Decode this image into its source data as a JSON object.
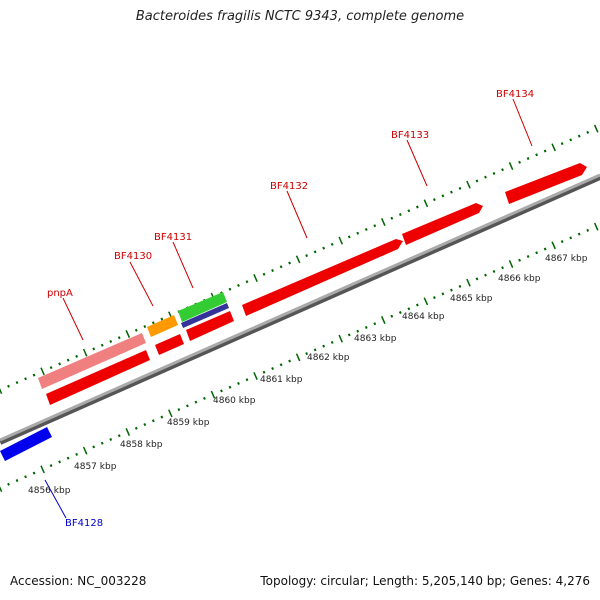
{
  "title": "Bacteroides fragilis NCTC 9343, complete genome",
  "footer": {
    "accession": "Accession: NC_003228",
    "summary": "Topology: circular; Length: 5,205,140 bp; Genes: 4,276"
  },
  "scale": {
    "unit_suffix": " kbp",
    "ticks": [
      4856,
      4857,
      4858,
      4859,
      4860,
      4861,
      4862,
      4863,
      4864,
      4865,
      4866,
      4867
    ]
  },
  "genes": [
    {
      "name": "pnpA",
      "color": "#cc0000"
    },
    {
      "name": "BF4130",
      "color": "#cc0000"
    },
    {
      "name": "BF4131",
      "color": "#cc0000"
    },
    {
      "name": "BF4132",
      "color": "#cc0000"
    },
    {
      "name": "BF4133",
      "color": "#cc0000"
    },
    {
      "name": "BF4134",
      "color": "#cc0000"
    },
    {
      "name": "BF4128",
      "color": "#0000cc"
    }
  ],
  "colors": {
    "backbone": "#888888",
    "cds": "#ff0000",
    "rna_pink": "#f08080",
    "orange": "#ff9900",
    "green": "#33cc33",
    "navy": "#333399",
    "blue": "#0000ee",
    "tick": "#006600"
  }
}
